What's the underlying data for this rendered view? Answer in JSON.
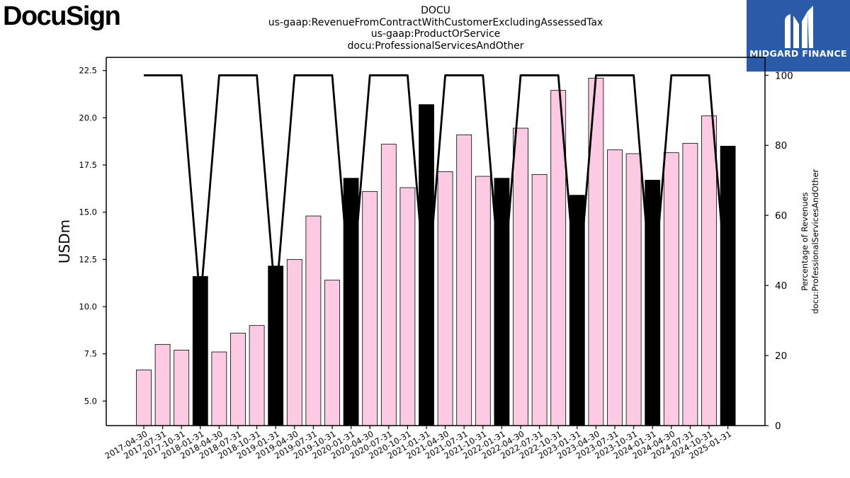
{
  "brand": {
    "logo_text": "DocuSign"
  },
  "badge": {
    "text": "MIDGARD FINANCE",
    "icon": "midgard-logo-icon",
    "color": "#2b5aa8"
  },
  "chart_data": {
    "type": "bar",
    "title_lines": [
      "DOCU",
      "us-gaap:RevenueFromContractWithCustomerExcludingAssessedTax",
      "us-gaap:ProductOrService",
      "docu:ProfessionalServicesAndOther"
    ],
    "ylabel": "USDm",
    "y2label_lines": [
      "Percentage of Revenues",
      "docu:ProfessionalServicesAndOther"
    ],
    "ylim": [
      3.7,
      23.2
    ],
    "y2lim": [
      0,
      100
    ],
    "yticks": [
      "5.0",
      "7.5",
      "10.0",
      "12.5",
      "15.0",
      "17.5",
      "20.0",
      "22.5"
    ],
    "y2ticks": [
      "0",
      "20",
      "40",
      "60",
      "80",
      "100"
    ],
    "colors": {
      "quarter_bar": "#fccae3",
      "annual_bar": "#000000",
      "line": "#000000"
    },
    "categories": [
      "2017-04-30",
      "2017-07-31",
      "2017-10-31",
      "2018-01-31",
      "2018-04-30",
      "2018-07-31",
      "2018-10-31",
      "2019-01-31",
      "2019-04-30",
      "2019-07-31",
      "2019-10-31",
      "2020-01-31",
      "2020-04-30",
      "2020-07-31",
      "2020-10-31",
      "2021-01-31",
      "2021-04-30",
      "2021-07-31",
      "2021-10-31",
      "2022-01-31",
      "2022-04-30",
      "2022-07-31",
      "2022-10-31",
      "2023-01-31",
      "2023-04-30",
      "2023-07-31",
      "2023-10-31",
      "2024-01-31",
      "2024-04-30",
      "2024-07-31",
      "2024-10-31",
      "2025-01-31"
    ],
    "values": [
      6.65,
      8.0,
      7.7,
      11.6,
      7.6,
      8.6,
      9.0,
      12.15,
      12.5,
      14.8,
      11.4,
      16.8,
      16.1,
      18.6,
      16.3,
      20.7,
      17.15,
      19.1,
      16.9,
      16.8,
      19.45,
      17.0,
      21.45,
      15.9,
      22.1,
      18.3,
      18.1,
      16.7,
      18.15,
      18.65,
      20.1,
      18.5
    ],
    "annual": [
      false,
      false,
      false,
      true,
      false,
      false,
      false,
      true,
      false,
      false,
      false,
      true,
      false,
      false,
      false,
      true,
      false,
      false,
      false,
      true,
      false,
      false,
      false,
      true,
      false,
      false,
      false,
      true,
      false,
      false,
      false,
      true
    ],
    "percentage": [
      100,
      100,
      100,
      35,
      100,
      100,
      100,
      35,
      100,
      100,
      100,
      35,
      100,
      100,
      100,
      35,
      100,
      100,
      100,
      35,
      100,
      100,
      100,
      35,
      100,
      100,
      100,
      35,
      100,
      100,
      100,
      35
    ]
  }
}
